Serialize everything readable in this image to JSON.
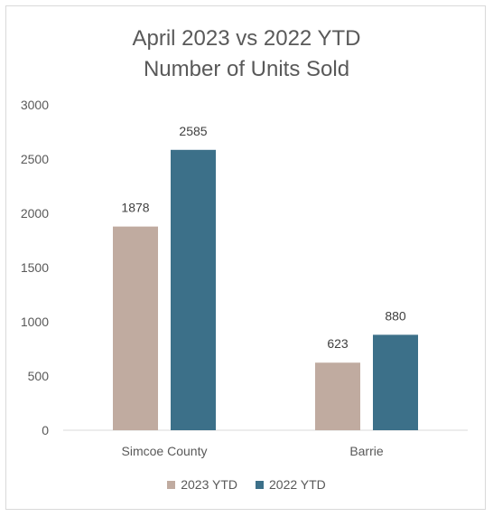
{
  "chart_data": {
    "type": "bar",
    "title": "April 2023 vs 2022 YTD",
    "subtitle": "Number of Units Sold",
    "categories": [
      "Simcoe County",
      "Barrie"
    ],
    "series": [
      {
        "name": "2023 YTD",
        "values": [
          1878,
          623
        ],
        "color": "#c0aba0"
      },
      {
        "name": "2022 YTD",
        "values": [
          2585,
          880
        ],
        "color": "#3c7089"
      }
    ],
    "ylim": [
      0,
      3000
    ],
    "yticks": [
      "0",
      "500",
      "1000",
      "1500",
      "2000",
      "2500",
      "3000"
    ],
    "grid": false,
    "legend_position": "bottom"
  }
}
